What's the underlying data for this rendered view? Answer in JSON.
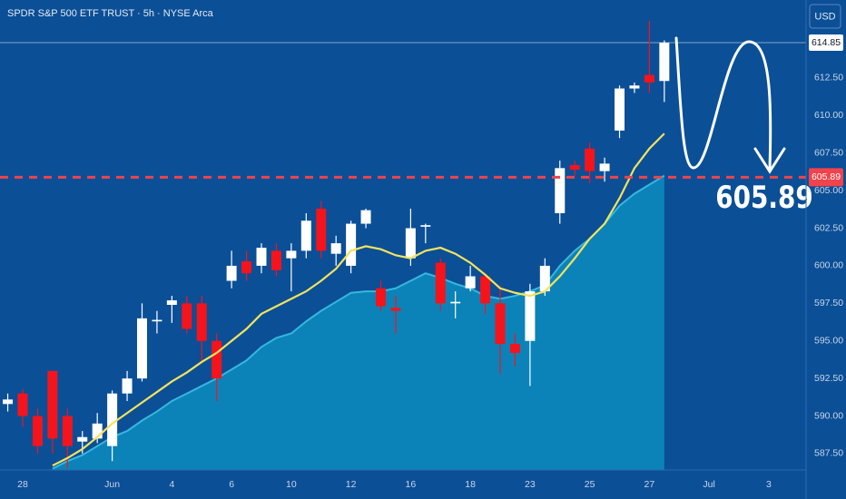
{
  "chart_data": {
    "type": "candlestick",
    "title": "SPDR S&P 500 ETF TRUST · 5h · NYSE Arca",
    "currency": "USD",
    "x": [
      0,
      1,
      2,
      3,
      4,
      5,
      6,
      7,
      8,
      9,
      10,
      11,
      12,
      13,
      14,
      15,
      16,
      17,
      18,
      19,
      20,
      21,
      22,
      23,
      24,
      25,
      26,
      27,
      28,
      29,
      30,
      31,
      32,
      33,
      34,
      35,
      36,
      37,
      38,
      39,
      40,
      41,
      42,
      43,
      44
    ],
    "open": [
      590.8,
      591.5,
      590.0,
      593.0,
      590.0,
      588.3,
      588.5,
      588.0,
      591.5,
      592.5,
      596.3,
      597.4,
      597.5,
      597.5,
      595.0,
      599.0,
      600.3,
      600.0,
      601.0,
      600.5,
      601.0,
      603.8,
      600.8,
      600.0,
      602.8,
      598.5,
      597.2,
      600.5,
      602.6,
      600.2,
      597.5,
      598.5,
      599.3,
      597.5,
      594.8,
      595.0,
      598.3,
      603.5,
      606.7,
      607.8,
      606.3,
      609.0,
      611.8,
      612.7,
      612.3
    ],
    "high": [
      591.5,
      591.8,
      590.5,
      593.0,
      590.5,
      589.0,
      590.2,
      591.7,
      593.0,
      597.5,
      597.0,
      598.0,
      598.0,
      598.0,
      595.5,
      601.0,
      601.0,
      601.5,
      601.5,
      601.5,
      603.5,
      604.3,
      602.0,
      603.0,
      603.8,
      599.0,
      598.0,
      603.8,
      602.8,
      600.5,
      598.3,
      600.0,
      599.5,
      598.7,
      595.5,
      598.8,
      600.5,
      607.0,
      607.0,
      608.2,
      607.2,
      612.0,
      612.2,
      616.3,
      615.0
    ],
    "low": [
      590.3,
      589.3,
      587.5,
      587.5,
      586.5,
      587.5,
      588.2,
      587.0,
      591.0,
      592.3,
      595.5,
      596.2,
      595.5,
      593.5,
      591.0,
      598.5,
      599.0,
      599.5,
      599.3,
      598.3,
      600.5,
      600.5,
      600.0,
      599.5,
      602.5,
      597.0,
      595.5,
      600.0,
      601.5,
      597.0,
      596.5,
      598.3,
      596.8,
      592.8,
      593.3,
      592.0,
      598.0,
      602.8,
      606.0,
      605.5,
      605.6,
      608.5,
      611.5,
      611.5,
      610.9
    ],
    "close": [
      591.1,
      590.0,
      588.0,
      588.5,
      588.0,
      588.6,
      589.5,
      591.5,
      592.5,
      596.5,
      596.4,
      597.7,
      595.8,
      595.0,
      592.5,
      600.0,
      599.5,
      601.2,
      599.7,
      601.0,
      603.0,
      601.0,
      601.5,
      602.8,
      603.7,
      597.3,
      597.0,
      602.5,
      602.7,
      597.5,
      597.6,
      599.3,
      597.5,
      594.8,
      594.2,
      598.3,
      600.0,
      606.5,
      606.4,
      606.3,
      606.8,
      611.8,
      612.0,
      612.2,
      614.85
    ],
    "up_color": "#ffffff",
    "down_color": "#f5141c",
    "ma": {
      "color": "#f3e35c",
      "values": [
        null,
        null,
        null,
        586.7,
        587.2,
        587.8,
        588.6,
        589.5,
        590.2,
        590.9,
        591.6,
        592.3,
        592.9,
        593.6,
        594.2,
        595.0,
        595.8,
        596.8,
        597.3,
        597.8,
        598.3,
        599.0,
        599.8,
        601.0,
        601.3,
        601.1,
        600.7,
        600.5,
        601.0,
        601.2,
        600.8,
        600.2,
        599.4,
        598.5,
        598.2,
        598.0,
        598.3,
        599.3,
        600.5,
        601.8,
        602.8,
        604.5,
        606.5,
        607.8,
        608.8
      ]
    },
    "area": {
      "color": "#0b88bb",
      "line_color": "#37b7dd",
      "values": [
        null,
        null,
        null,
        586.5,
        587.0,
        587.4,
        588.0,
        588.6,
        589.0,
        589.7,
        590.3,
        591.0,
        591.5,
        592.0,
        592.5,
        593.1,
        593.7,
        594.6,
        595.2,
        595.5,
        596.3,
        597.0,
        597.6,
        598.2,
        598.3,
        598.3,
        598.5,
        599.0,
        599.5,
        599.2,
        598.8,
        598.5,
        598.0,
        597.8,
        598.0,
        598.3,
        598.7,
        600.0,
        601.0,
        601.8,
        602.8,
        604.0,
        604.8,
        605.4,
        606.0
      ]
    },
    "level": 605.89,
    "level_color": "#f0434b",
    "last_price": 614.85,
    "xlim": [
      -0.52,
      53.5
    ],
    "xticks": [
      {
        "value": 1,
        "label": "28"
      },
      {
        "value": 7,
        "label": "Jun"
      },
      {
        "value": 11,
        "label": "4"
      },
      {
        "value": 15,
        "label": "6"
      },
      {
        "value": 19,
        "label": "10"
      },
      {
        "value": 23,
        "label": "12"
      },
      {
        "value": 27,
        "label": "16"
      },
      {
        "value": 31,
        "label": "18"
      },
      {
        "value": 35,
        "label": "23"
      },
      {
        "value": 39,
        "label": "25"
      },
      {
        "value": 43,
        "label": "27"
      },
      {
        "value": 47,
        "label": "Jul"
      },
      {
        "value": 51,
        "label": "3"
      }
    ],
    "ylim": [
      586.41,
      617.69
    ],
    "yticks": [
      {
        "value": 587.5,
        "label": "587.50"
      },
      {
        "value": 590,
        "label": "590.00"
      },
      {
        "value": 592.5,
        "label": "592.50"
      },
      {
        "value": 595,
        "label": "595.00"
      },
      {
        "value": 597.5,
        "label": "597.50"
      },
      {
        "value": 600,
        "label": "600.00"
      },
      {
        "value": 602.5,
        "label": "602.50"
      },
      {
        "value": 605,
        "label": "605.00"
      },
      {
        "value": 607.5,
        "label": "607.50"
      },
      {
        "value": 610,
        "label": "610.00"
      },
      {
        "value": 612.5,
        "label": "612.50"
      }
    ]
  }
}
